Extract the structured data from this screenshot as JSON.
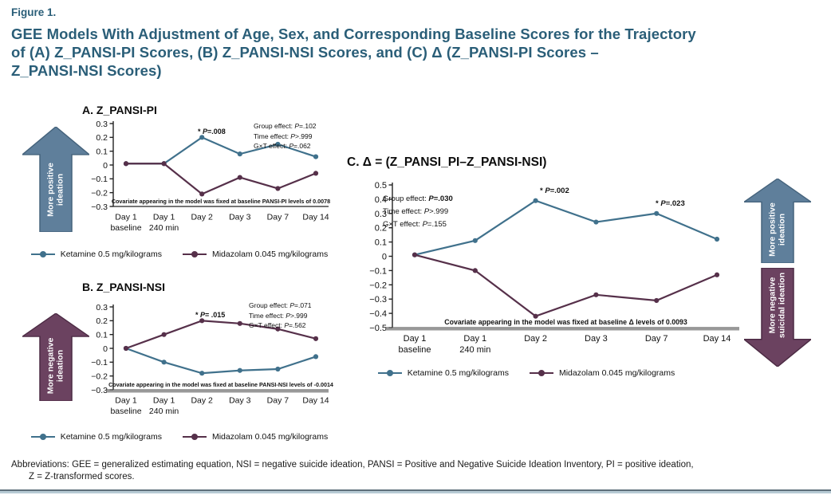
{
  "figure_label": "Figure 1.",
  "title_lines": [
    "GEE Models With Adjustment of Age, Sex, and Corresponding Baseline Scores for the Trajectory",
    "of (A) Z_PANSI-PI Scores, (B) Z_PANSI-NSI Scores, and (C) Δ (Z_PANSI-PI Scores –",
    "Z_PANSI-NSI Scores)"
  ],
  "colors": {
    "heading": "#2a5e78",
    "ketamine": "#40718c",
    "midazolam": "#56304a",
    "arrow_positive": "#5f7f9b",
    "arrow_positive_border": "#45637c",
    "arrow_negative": "#6b4260",
    "arrow_negative_border": "#4b2a43"
  },
  "abbreviations": {
    "line1": "Abbreviations: GEE = generalized estimating equation, NSI = negative suicide ideation, PANSI = Positive and Negative Suicide Ideation Inventory, PI = positive ideation,",
    "line2": "Z = Z-transformed scores."
  },
  "chart_data": [
    {
      "id": "A",
      "type": "line",
      "title": "A. Z_PANSI-PI",
      "xlabel": "",
      "ylabel": "",
      "ylim": [
        -0.3,
        0.3
      ],
      "y_ticks": [
        0.3,
        0.2,
        0.1,
        0,
        -0.1,
        -0.2,
        -0.3
      ],
      "grid": false,
      "legend_position": "bottom",
      "categories": [
        "Day 1|baseline",
        "Day 1|240 min",
        "Day 2",
        "Day 3",
        "Day 7",
        "Day 14"
      ],
      "series": [
        {
          "name": "Ketamine 0.5 mg/kilograms",
          "color": "#40718c",
          "values": [
            0.01,
            0.01,
            0.2,
            0.08,
            0.15,
            0.06
          ]
        },
        {
          "name": "Midazolam 0.045 mg/kilograms",
          "color": "#56304a",
          "values": [
            0.01,
            0.01,
            -0.21,
            -0.09,
            -0.17,
            -0.06
          ]
        }
      ],
      "stats": [
        {
          "label": "Group effect: ",
          "value": "P=.102"
        },
        {
          "label": "Time effect: ",
          "value": "P>.999"
        },
        {
          "label": "G×T effect: ",
          "value": "P=.062"
        }
      ],
      "significance": [
        {
          "prefix": "* ",
          "value": "P=.008",
          "anchor": "Day 2"
        }
      ],
      "covariate_note": "Covariate appearing in the model was fixed at baseline PANSI-PI levels of 0.0078",
      "arrow": {
        "direction": "up",
        "label_lines": [
          "More positive",
          "ideation"
        ]
      }
    },
    {
      "id": "B",
      "type": "line",
      "title": "B. Z_PANSI-NSI",
      "xlabel": "",
      "ylabel": "",
      "ylim": [
        -0.3,
        0.3
      ],
      "y_ticks": [
        0.3,
        0.2,
        0.1,
        0,
        -0.1,
        -0.2,
        -0.3
      ],
      "grid": false,
      "legend_position": "bottom",
      "categories": [
        "Day 1|baseline",
        "Day 1|240 min",
        "Day 2",
        "Day 3",
        "Day 7",
        "Day 14"
      ],
      "series": [
        {
          "name": "Ketamine 0.5 mg/kilograms",
          "color": "#40718c",
          "values": [
            0.0,
            -0.1,
            -0.18,
            -0.16,
            -0.15,
            -0.06
          ]
        },
        {
          "name": "Midazolam 0.045 mg/kilograms",
          "color": "#56304a",
          "values": [
            0.0,
            0.1,
            0.2,
            0.18,
            0.14,
            0.07
          ]
        }
      ],
      "stats": [
        {
          "label": "Group effect: ",
          "value": "P=.071"
        },
        {
          "label": "Time effect: ",
          "value": "P>.999"
        },
        {
          "label": "G×T effect: ",
          "value": "P=.562"
        }
      ],
      "significance": [
        {
          "prefix": "* ",
          "value": "P= .015",
          "anchor": "Day 2"
        }
      ],
      "covariate_note": "Covariate appearing in the model was fixed at baseline PANSI-NSI levels of -0.0014",
      "arrow": {
        "direction": "up",
        "label_lines": [
          "More negative",
          "ideation"
        ]
      }
    },
    {
      "id": "C",
      "type": "line",
      "title": "C. Δ = (Z_PANSI_PI–Z_PANSI-NSI)",
      "xlabel": "",
      "ylabel": "",
      "ylim": [
        -0.5,
        0.5
      ],
      "y_ticks": [
        0.5,
        0.4,
        0.3,
        0.2,
        0.1,
        0,
        -0.1,
        -0.2,
        -0.3,
        -0.4,
        -0.5
      ],
      "grid": false,
      "legend_position": "bottom",
      "categories": [
        "Day 1|baseline",
        "Day 1|240 min",
        "Day 2",
        "Day 3",
        "Day 7",
        "Day 14"
      ],
      "series": [
        {
          "name": "Ketamine 0.5 mg/kilograms",
          "color": "#40718c",
          "values": [
            0.01,
            0.11,
            0.39,
            0.24,
            0.3,
            0.12
          ]
        },
        {
          "name": "Midazolam 0.045 mg/kilograms",
          "color": "#56304a",
          "values": [
            0.01,
            -0.1,
            -0.42,
            -0.27,
            -0.31,
            -0.13
          ]
        }
      ],
      "stats": [
        {
          "label": "Group effect: ",
          "value": "P=.030"
        },
        {
          "label": "Time effect: ",
          "value": "P>.999"
        },
        {
          "label": "G×T effect: ",
          "value": "P=.155"
        }
      ],
      "significance": [
        {
          "prefix": "* ",
          "value": "P=.002",
          "anchor": "Day 2"
        },
        {
          "prefix": "* ",
          "value": "P=.023",
          "anchor": "Day 7"
        }
      ],
      "covariate_note": "Covariate appearing in the model was fixed at baseline Δ levels of 0.0093",
      "arrows": [
        {
          "direction": "up",
          "label_lines": [
            "More positive",
            "ideation"
          ]
        },
        {
          "direction": "down",
          "label_lines": [
            "More negative",
            "suicidal ideation"
          ]
        }
      ]
    }
  ]
}
